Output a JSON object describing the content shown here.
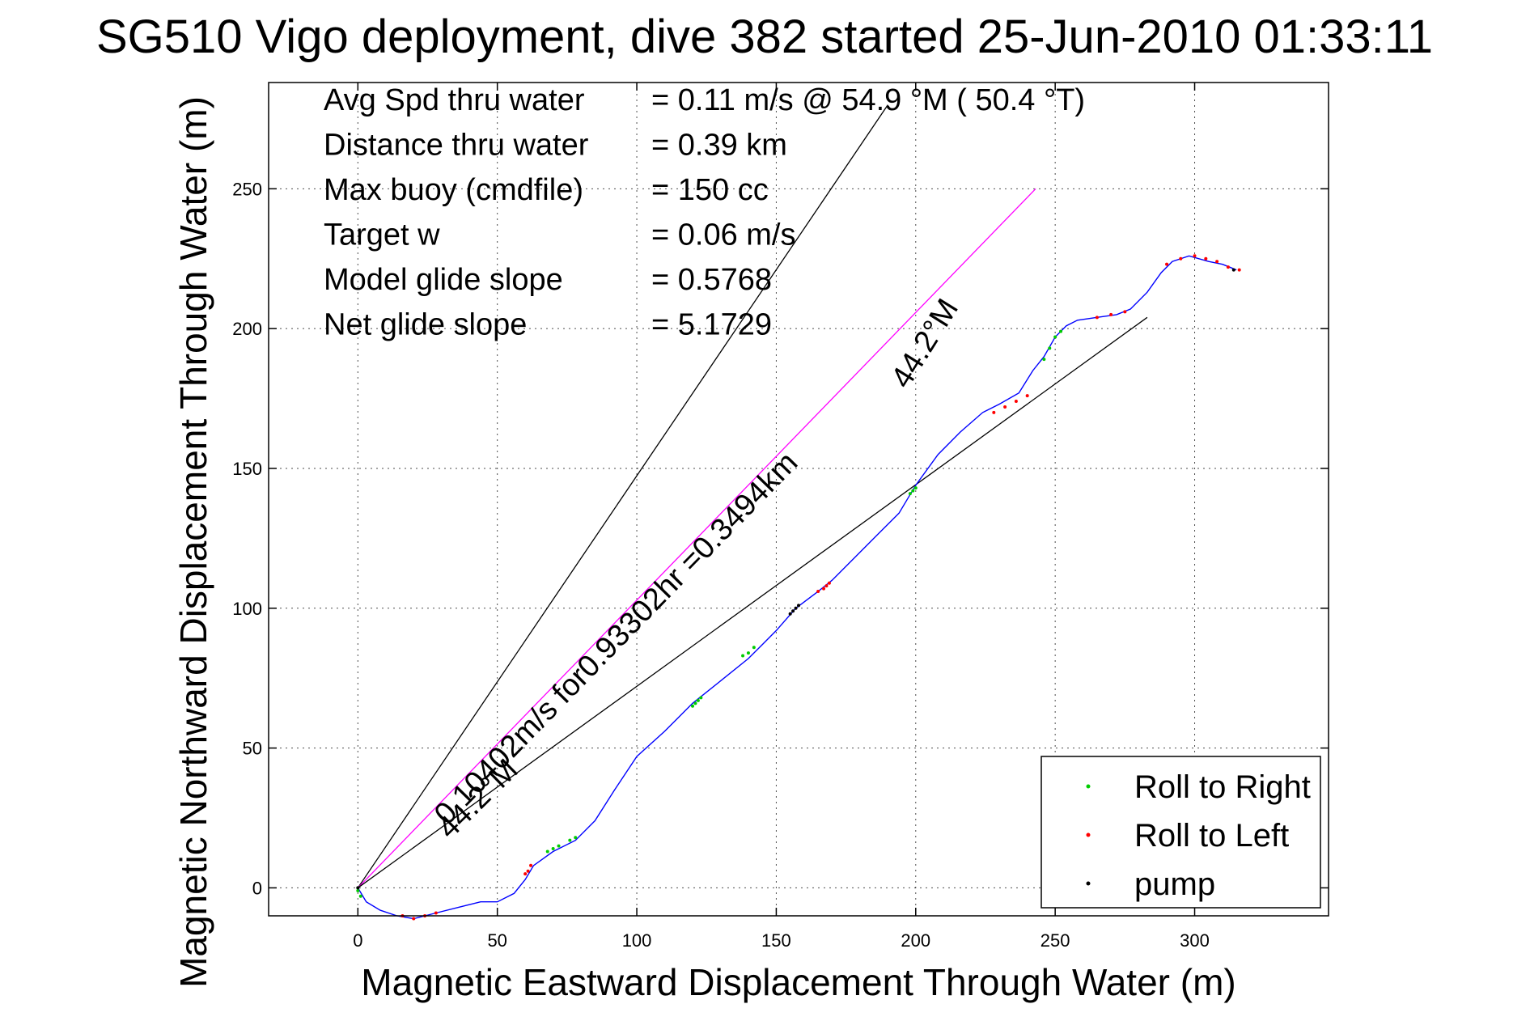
{
  "chart_data": {
    "type": "scatter",
    "title": "SG510 Vigo deployment, dive 382 started 25-Jun-2010 01:33:11",
    "xlabel": "Magnetic Eastward Displacement Through Water (m)",
    "ylabel": "Magnetic Northward Displacement Through Water (m)",
    "xlim": [
      -32,
      348
    ],
    "ylim": [
      -10,
      288
    ],
    "xticks": [
      0,
      50,
      100,
      150,
      200,
      250,
      300
    ],
    "yticks": [
      0,
      50,
      100,
      150,
      200,
      250
    ],
    "grid": true,
    "legend_position": "bottom-right",
    "stats": [
      {
        "label": "Avg Spd thru water",
        "value": "=  0.11 m/s @  54.9 °M ( 50.4 °T)"
      },
      {
        "label": "Distance thru water",
        "value": "=  0.39 km"
      },
      {
        "label": "Max buoy (cmdfile)",
        "value": "= 150 cc"
      },
      {
        "label": "Target w",
        "value": "= 0.06 m/s"
      },
      {
        "label": "Model glide slope",
        "value": "= 0.5768"
      },
      {
        "label": "Net glide slope",
        "value": "= 5.1729"
      }
    ],
    "annotations": [
      {
        "text": "0.10402m/s for0.93302hr =0.3494km",
        "x": 32,
        "y": 22,
        "angle_deg": 45.8
      },
      {
        "text": "44.2°M",
        "x": 33,
        "y": 17,
        "angle_deg": 44.5
      },
      {
        "text": "44.2°M",
        "x": 197,
        "y": 178,
        "angle_deg": 58
      }
    ],
    "lines": [
      {
        "name": "track-line-steep",
        "color": "#000000",
        "points": [
          [
            0,
            0
          ],
          [
            190,
            280
          ]
        ]
      },
      {
        "name": "average-track-line",
        "color": "#ff00ff",
        "points": [
          [
            0,
            0
          ],
          [
            243,
            250
          ]
        ]
      },
      {
        "name": "heading-line",
        "color": "#000000",
        "points": [
          [
            0,
            0
          ],
          [
            283,
            204
          ]
        ]
      }
    ],
    "path": {
      "name": "Glider track",
      "color": "#0000ff",
      "points": [
        [
          0,
          0
        ],
        [
          3,
          -5
        ],
        [
          8,
          -8
        ],
        [
          14,
          -10
        ],
        [
          20,
          -11
        ],
        [
          28,
          -9
        ],
        [
          36,
          -7
        ],
        [
          44,
          -5
        ],
        [
          50,
          -5
        ],
        [
          56,
          -2
        ],
        [
          60,
          3
        ],
        [
          63,
          8
        ],
        [
          70,
          13
        ],
        [
          78,
          17
        ],
        [
          85,
          24
        ],
        [
          92,
          35
        ],
        [
          100,
          47
        ],
        [
          110,
          56
        ],
        [
          120,
          66
        ],
        [
          130,
          74
        ],
        [
          140,
          82
        ],
        [
          145,
          87
        ],
        [
          150,
          92
        ],
        [
          157,
          100
        ],
        [
          165,
          106
        ],
        [
          170,
          110
        ],
        [
          178,
          118
        ],
        [
          186,
          126
        ],
        [
          194,
          134
        ],
        [
          200,
          144
        ],
        [
          208,
          155
        ],
        [
          216,
          163
        ],
        [
          224,
          170
        ],
        [
          230,
          173
        ],
        [
          237,
          177
        ],
        [
          242,
          185
        ],
        [
          246,
          190
        ],
        [
          250,
          197
        ],
        [
          254,
          201
        ],
        [
          258,
          203
        ],
        [
          265,
          204
        ],
        [
          272,
          205
        ],
        [
          277,
          207
        ],
        [
          283,
          213
        ],
        [
          288,
          220
        ],
        [
          292,
          224
        ],
        [
          298,
          226
        ],
        [
          305,
          224
        ],
        [
          310,
          223
        ],
        [
          315,
          221
        ]
      ]
    },
    "series": [
      {
        "name": "Roll to Right",
        "color": "#00cc00",
        "points": [
          [
            0,
            -1
          ],
          [
            1,
            -3
          ],
          [
            120,
            65
          ],
          [
            121,
            66
          ],
          [
            122,
            67
          ],
          [
            123,
            68
          ],
          [
            138,
            83
          ],
          [
            140,
            84
          ],
          [
            142,
            86
          ],
          [
            198,
            141
          ],
          [
            199,
            142
          ],
          [
            200,
            143
          ],
          [
            246,
            189
          ],
          [
            248,
            193
          ],
          [
            250,
            197
          ],
          [
            252,
            199
          ],
          [
            68,
            13
          ],
          [
            70,
            14
          ],
          [
            72,
            15
          ],
          [
            76,
            17
          ],
          [
            78,
            18
          ]
        ]
      },
      {
        "name": "Roll to Left",
        "color": "#ff0000",
        "points": [
          [
            16,
            -10
          ],
          [
            20,
            -11
          ],
          [
            24,
            -10
          ],
          [
            28,
            -9
          ],
          [
            60,
            5
          ],
          [
            61,
            6
          ],
          [
            62,
            8
          ],
          [
            165,
            106
          ],
          [
            167,
            107
          ],
          [
            168,
            108
          ],
          [
            169,
            109
          ],
          [
            228,
            170
          ],
          [
            232,
            172
          ],
          [
            236,
            174
          ],
          [
            240,
            176
          ],
          [
            265,
            204
          ],
          [
            270,
            205
          ],
          [
            275,
            206
          ],
          [
            290,
            223
          ],
          [
            295,
            225
          ],
          [
            300,
            226
          ],
          [
            304,
            225
          ],
          [
            308,
            224
          ],
          [
            312,
            222
          ],
          [
            316,
            221
          ]
        ]
      },
      {
        "name": "pump",
        "color": "#000000",
        "points": [
          [
            0,
            0
          ],
          [
            155,
            98
          ],
          [
            156,
            99
          ],
          [
            157,
            100
          ],
          [
            158,
            101
          ],
          [
            314,
            221
          ]
        ]
      }
    ]
  }
}
